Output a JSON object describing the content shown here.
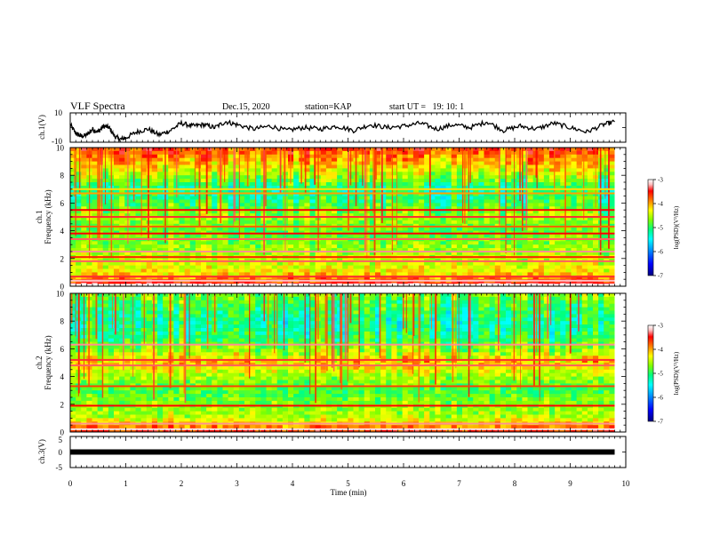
{
  "header": {
    "title": "VLF Spectra",
    "date": "Dec.15, 2020",
    "station": "station=KAP",
    "start": "start UT =   19: 10: 1"
  },
  "colors": {
    "colormap": [
      "#000080",
      "#0000ff",
      "#00a0ff",
      "#00ffff",
      "#00ff80",
      "#80ff00",
      "#ffff00",
      "#ff8000",
      "#ff0000",
      "#ffc0c0",
      "#ffffff"
    ]
  },
  "chart_data": [
    {
      "type": "line",
      "name": "ch1-waveform",
      "ylabel": "ch.1(V)",
      "ylim": [
        -10,
        10
      ],
      "yticks": [
        "10",
        "-10"
      ],
      "xlim": [
        0,
        10
      ],
      "x_minutes": [
        0.0,
        0.1,
        0.2,
        0.3,
        0.4,
        0.5,
        0.6,
        0.7,
        0.8,
        0.9,
        1.0,
        1.2,
        1.4,
        1.6,
        1.8,
        2.0,
        2.2,
        2.4,
        2.6,
        2.8,
        3.0,
        3.3,
        3.6,
        3.9,
        4.2,
        4.5,
        4.8,
        5.1,
        5.4,
        5.7,
        6.0,
        6.3,
        6.6,
        6.9,
        7.2,
        7.5,
        7.8,
        8.1,
        8.4,
        8.7,
        9.0,
        9.3,
        9.6,
        9.8
      ],
      "y_volts": [
        2,
        -4,
        -6,
        -5,
        -1,
        -3,
        1,
        0,
        -6,
        -8,
        -7,
        -3,
        -1,
        -5,
        -2,
        3,
        1,
        2,
        0,
        4,
        2,
        -1,
        1,
        -2,
        0,
        -1,
        1,
        -2,
        2,
        0,
        1,
        3,
        -1,
        2,
        0,
        4,
        -2,
        1,
        -1,
        3,
        0,
        -3,
        2,
        4
      ]
    },
    {
      "type": "heatmap",
      "name": "ch1-spectrogram",
      "ylabel_top": "ch.1",
      "ylabel": "Frequency (kHz)",
      "ylim": [
        0,
        10
      ],
      "yticks": [
        "0",
        "2",
        "4",
        "6",
        "8",
        "10"
      ],
      "xlim": [
        0,
        10
      ],
      "data_end_min": 9.8,
      "colorbar": {
        "label": "log(PSD)(V²/Hz)",
        "range": [
          -7,
          -3
        ],
        "ticks": [
          "-3",
          "-4",
          "-5",
          "-6",
          "-7"
        ]
      },
      "bands_khz": [
        {
          "f": 0.1,
          "v": -3.0
        },
        {
          "f": 0.4,
          "v": -3.4
        },
        {
          "f": 0.7,
          "v": -3.7
        },
        {
          "f": 1.8,
          "v": -3.6
        },
        {
          "f": 2.1,
          "v": -3.9
        },
        {
          "f": 2.5,
          "v": -3.5
        },
        {
          "f": 3.4,
          "v": -3.6
        },
        {
          "f": 3.8,
          "v": -3.8
        },
        {
          "f": 4.3,
          "v": -4.1
        },
        {
          "f": 5.0,
          "v": -3.7
        },
        {
          "f": 5.5,
          "v": -3.8
        },
        {
          "f": 6.7,
          "v": -4.3
        },
        {
          "f": 7.0,
          "v": -4.5
        }
      ],
      "background_profile": [
        {
          "f": 0,
          "v": -3.6
        },
        {
          "f": 1,
          "v": -4.6
        },
        {
          "f": 2,
          "v": -4.8
        },
        {
          "f": 3,
          "v": -5.0
        },
        {
          "f": 4,
          "v": -5.2
        },
        {
          "f": 5,
          "v": -4.9
        },
        {
          "f": 6,
          "v": -5.3
        },
        {
          "f": 7,
          "v": -5.5
        },
        {
          "f": 8,
          "v": -4.9
        },
        {
          "f": 9,
          "v": -4.4
        },
        {
          "f": 10,
          "v": -4.0
        }
      ]
    },
    {
      "type": "heatmap",
      "name": "ch2-spectrogram",
      "ylabel_top": "ch.2",
      "ylabel": "Frequency (kHz)",
      "ylim": [
        0,
        10
      ],
      "yticks": [
        "0",
        "2",
        "4",
        "6",
        "8",
        "10"
      ],
      "xlim": [
        0,
        10
      ],
      "data_end_min": 9.8,
      "colorbar": {
        "label": "log(PSD)(V²/Hz)",
        "range": [
          -7,
          -3
        ],
        "ticks": [
          "-3",
          "-4",
          "-5",
          "-6",
          "-7"
        ]
      },
      "bands_khz": [
        {
          "f": 0.2,
          "v": -3.2
        },
        {
          "f": 0.6,
          "v": -3.5
        },
        {
          "f": 1.9,
          "v": -3.8
        },
        {
          "f": 3.3,
          "v": -4.0
        },
        {
          "f": 4.8,
          "v": -3.6
        },
        {
          "f": 5.2,
          "v": -3.7
        },
        {
          "f": 6.3,
          "v": -3.5
        }
      ],
      "background_profile": [
        {
          "f": 0,
          "v": -3.8
        },
        {
          "f": 1,
          "v": -4.8
        },
        {
          "f": 2,
          "v": -5.0
        },
        {
          "f": 3,
          "v": -5.2
        },
        {
          "f": 4,
          "v": -4.9
        },
        {
          "f": 5,
          "v": -4.4
        },
        {
          "f": 6,
          "v": -5.0
        },
        {
          "f": 7,
          "v": -5.4
        },
        {
          "f": 8,
          "v": -5.5
        },
        {
          "f": 9,
          "v": -5.3
        },
        {
          "f": 10,
          "v": -5.0
        }
      ]
    },
    {
      "type": "line",
      "name": "ch3-waveform",
      "ylabel": "ch.3(V)",
      "ylim": [
        -5,
        5
      ],
      "yticks": [
        "5",
        "0",
        "-5"
      ],
      "xlim": [
        0,
        10
      ],
      "xlabel": "Time (min)",
      "xticks": [
        "0",
        "1",
        "2",
        "3",
        "4",
        "5",
        "6",
        "7",
        "8",
        "9",
        "10"
      ],
      "x_minutes": [
        0,
        9.8
      ],
      "y_volts": [
        0,
        0
      ]
    }
  ]
}
